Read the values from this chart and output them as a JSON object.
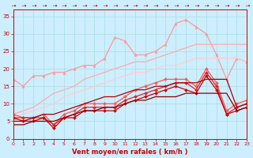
{
  "xlabel": "Vent moyen/en rafales ( km/h )",
  "x": [
    0,
    1,
    2,
    3,
    4,
    5,
    6,
    7,
    8,
    9,
    10,
    11,
    12,
    13,
    14,
    15,
    16,
    17,
    18,
    19,
    20,
    21,
    22,
    23
  ],
  "series": [
    {
      "color": "#ff9999",
      "alpha": 1.0,
      "linewidth": 0.9,
      "marker": "^",
      "markersize": 2.5,
      "values": [
        17,
        15,
        18,
        18,
        19,
        19,
        20,
        21,
        21,
        23,
        29,
        28,
        24,
        24,
        25,
        27,
        33,
        34,
        32,
        30,
        24,
        17,
        23,
        22
      ]
    },
    {
      "color": "#ffaaaa",
      "alpha": 1.0,
      "linewidth": 0.9,
      "marker": null,
      "markersize": 0,
      "values": [
        7,
        8,
        9,
        11,
        13,
        14,
        15,
        17,
        18,
        19,
        20,
        21,
        22,
        22,
        23,
        24,
        25,
        26,
        27,
        27,
        27,
        27,
        27,
        27
      ]
    },
    {
      "color": "#ffcccc",
      "alpha": 1.0,
      "linewidth": 0.9,
      "marker": null,
      "markersize": 0,
      "values": [
        6,
        7,
        8,
        9,
        10,
        12,
        13,
        14,
        15,
        16,
        17,
        18,
        19,
        19,
        20,
        21,
        21,
        22,
        23,
        23,
        23,
        23,
        23,
        22
      ]
    },
    {
      "color": "#ff5555",
      "alpha": 1.0,
      "linewidth": 0.9,
      "marker": "D",
      "markersize": 2.0,
      "values": [
        7,
        6,
        6,
        7,
        4,
        7,
        8,
        10,
        10,
        10,
        10,
        12,
        14,
        15,
        16,
        17,
        17,
        17,
        15,
        20,
        16,
        8,
        10,
        11
      ]
    },
    {
      "color": "#dd2222",
      "alpha": 1.0,
      "linewidth": 0.9,
      "marker": "D",
      "markersize": 2.0,
      "values": [
        6,
        6,
        6,
        6,
        4,
        6,
        7,
        9,
        9,
        9,
        9,
        11,
        12,
        13,
        14,
        15,
        16,
        16,
        14,
        19,
        15,
        7,
        9,
        10
      ]
    },
    {
      "color": "#cc0000",
      "alpha": 1.0,
      "linewidth": 0.9,
      "marker": "D",
      "markersize": 2.0,
      "values": [
        6,
        5,
        5,
        6,
        3,
        6,
        6,
        8,
        8,
        8,
        8,
        10,
        11,
        12,
        13,
        14,
        15,
        14,
        13,
        18,
        14,
        7,
        8,
        9
      ]
    },
    {
      "color": "#aa0000",
      "alpha": 1.0,
      "linewidth": 0.9,
      "marker": null,
      "markersize": 0,
      "values": [
        5,
        5,
        6,
        7,
        7,
        8,
        9,
        10,
        11,
        12,
        12,
        13,
        14,
        14,
        15,
        15,
        16,
        16,
        16,
        17,
        17,
        17,
        9,
        10
      ]
    },
    {
      "color": "#880000",
      "alpha": 1.0,
      "linewidth": 0.9,
      "marker": null,
      "markersize": 0,
      "values": [
        4,
        4,
        5,
        5,
        5,
        6,
        7,
        8,
        8,
        9,
        9,
        10,
        11,
        11,
        12,
        12,
        12,
        13,
        13,
        13,
        13,
        13,
        8,
        9
      ]
    }
  ],
  "ylim": [
    0,
    37
  ],
  "xlim": [
    0,
    23
  ],
  "yticks": [
    0,
    5,
    10,
    15,
    20,
    25,
    30,
    35
  ],
  "xticks": [
    0,
    1,
    2,
    3,
    4,
    5,
    6,
    7,
    8,
    9,
    10,
    11,
    12,
    13,
    14,
    15,
    16,
    17,
    18,
    19,
    20,
    21,
    22,
    23
  ],
  "bg_color": "#cceeff",
  "grid_color": "#aadddd",
  "tick_color": "#cc0000",
  "label_color": "#cc0000",
  "axis_color": "#cc0000"
}
